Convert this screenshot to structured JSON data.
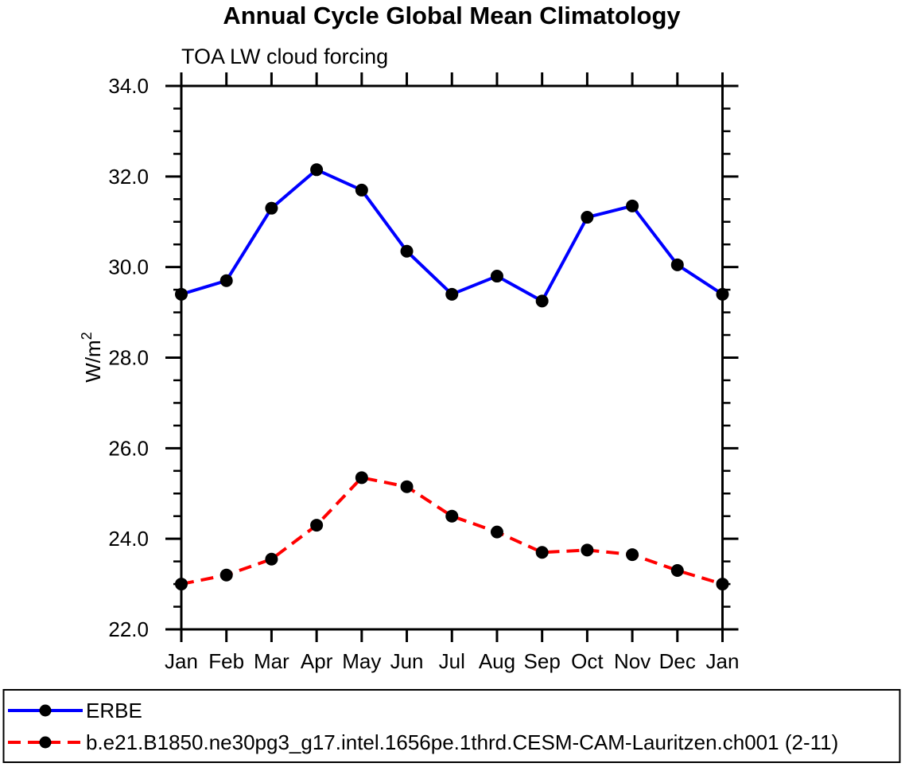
{
  "title": "Annual Cycle Global Mean Climatology",
  "subtitle": "TOA LW cloud forcing",
  "chart_data": {
    "type": "line",
    "x_categories": [
      "Jan",
      "Feb",
      "Mar",
      "Apr",
      "May",
      "Jun",
      "Jul",
      "Aug",
      "Sep",
      "Oct",
      "Nov",
      "Dec",
      "Jan"
    ],
    "ylabel_base": "W/m",
    "ylabel_exponent": "2",
    "ylim": [
      22.0,
      34.0
    ],
    "ytick_major_interval": 2.0,
    "ytick_minor_interval": 0.5,
    "ytick_labels": [
      "22.0",
      "24.0",
      "26.0",
      "28.0",
      "30.0",
      "32.0",
      "34.0"
    ],
    "grid": false,
    "legend_position": "bottom",
    "colors": {
      "erbe_line": "#0000ff",
      "model_line": "#ff0000",
      "marker": "#000000",
      "axis": "#000000"
    },
    "series": [
      {
        "name": "ERBE",
        "color": "#0000ff",
        "line_style": "solid",
        "marker": "filled-circle",
        "marker_color": "#000000",
        "values": [
          29.4,
          29.7,
          31.3,
          32.15,
          31.7,
          30.35,
          29.4,
          29.8,
          29.25,
          31.1,
          31.35,
          30.05,
          29.4
        ]
      },
      {
        "name": "b.e21.B1850.ne30pg3_g17.intel.1656pe.1thrd.CESM-CAM-Lauritzen.ch001 (2-11)",
        "color": "#ff0000",
        "line_style": "dashed",
        "marker": "filled-circle",
        "marker_color": "#000000",
        "values": [
          23.0,
          23.2,
          23.55,
          24.3,
          25.35,
          25.15,
          24.5,
          24.15,
          23.7,
          23.75,
          23.65,
          23.3,
          23.0
        ]
      }
    ]
  }
}
